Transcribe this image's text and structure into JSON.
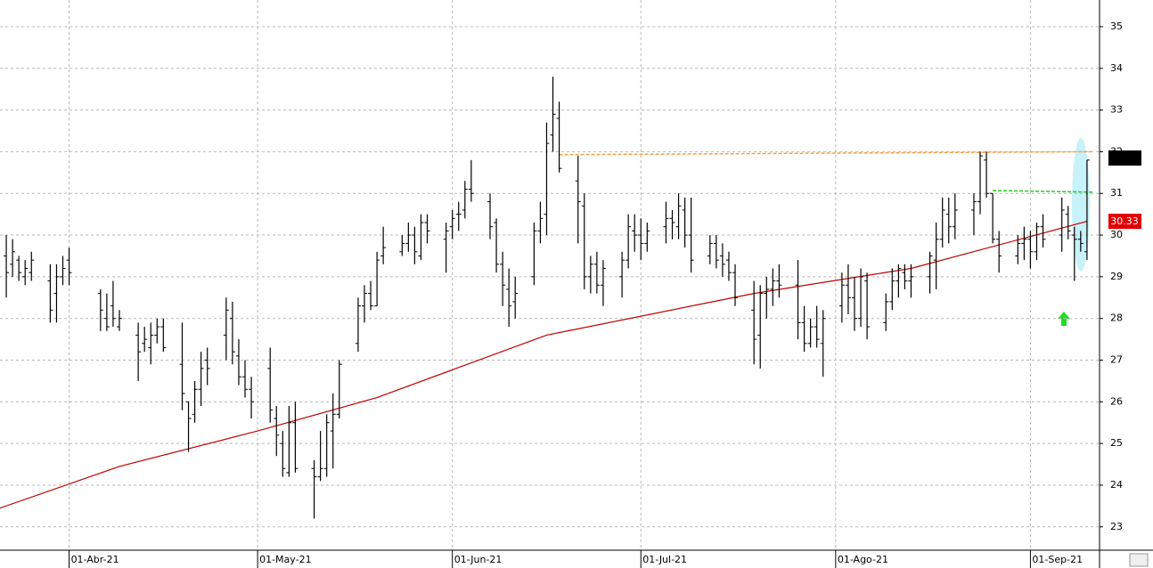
{
  "chart_data": {
    "type": "ohlc",
    "color": "#000000",
    "xlim": [
      "2021-03-21",
      "2021-09-12"
    ],
    "xticks": [
      {
        "value": "2021-04-01",
        "label": "01-Abr-21"
      },
      {
        "value": "2021-05-01",
        "label": "01-May-21"
      },
      {
        "value": "2021-06-01",
        "label": "01-Jun-21"
      },
      {
        "value": "2021-07-01",
        "label": "01-Jul-21"
      },
      {
        "value": "2021-08-01",
        "label": "01-Ago-21"
      },
      {
        "value": "2021-09-01",
        "label": "01-Sep-21"
      }
    ],
    "ylim": [
      22.44,
      35.64
    ],
    "yticks": [
      23,
      24,
      25,
      26,
      27,
      28,
      29,
      30,
      31,
      32,
      33,
      34,
      35
    ],
    "grid": true,
    "x": [
      "2021-03-22",
      "2021-03-23",
      "2021-03-24",
      "2021-03-25",
      "2021-03-26",
      "2021-03-29",
      "2021-03-30",
      "2021-03-31",
      "2021-04-01",
      "2021-04-06",
      "2021-04-07",
      "2021-04-08",
      "2021-04-09",
      "2021-04-12",
      "2021-04-13",
      "2021-04-14",
      "2021-04-15",
      "2021-04-16",
      "2021-04-19",
      "2021-04-20",
      "2021-04-21",
      "2021-04-22",
      "2021-04-23",
      "2021-04-26",
      "2021-04-27",
      "2021-04-28",
      "2021-04-29",
      "2021-04-30",
      "2021-05-03",
      "2021-05-04",
      "2021-05-05",
      "2021-05-06",
      "2021-05-07",
      "2021-05-10",
      "2021-05-11",
      "2021-05-12",
      "2021-05-13",
      "2021-05-14",
      "2021-05-17",
      "2021-05-18",
      "2021-05-19",
      "2021-05-20",
      "2021-05-21",
      "2021-05-24",
      "2021-05-25",
      "2021-05-26",
      "2021-05-27",
      "2021-05-28",
      "2021-05-31",
      "2021-06-01",
      "2021-06-02",
      "2021-06-03",
      "2021-06-04",
      "2021-06-07",
      "2021-06-08",
      "2021-06-09",
      "2021-06-10",
      "2021-06-11",
      "2021-06-14",
      "2021-06-15",
      "2021-06-16",
      "2021-06-17",
      "2021-06-18",
      "2021-06-21",
      "2021-06-22",
      "2021-06-23",
      "2021-06-24",
      "2021-06-25",
      "2021-06-28",
      "2021-06-29",
      "2021-06-30",
      "2021-07-01",
      "2021-07-02",
      "2021-07-05",
      "2021-07-06",
      "2021-07-07",
      "2021-07-08",
      "2021-07-09",
      "2021-07-12",
      "2021-07-13",
      "2021-07-14",
      "2021-07-15",
      "2021-07-16",
      "2021-07-19",
      "2021-07-20",
      "2021-07-21",
      "2021-07-22",
      "2021-07-23",
      "2021-07-26",
      "2021-07-27",
      "2021-07-28",
      "2021-07-29",
      "2021-07-30",
      "2021-08-02",
      "2021-08-03",
      "2021-08-04",
      "2021-08-05",
      "2021-08-06",
      "2021-08-09",
      "2021-08-10",
      "2021-08-11",
      "2021-08-12",
      "2021-08-13",
      "2021-08-16",
      "2021-08-17",
      "2021-08-18",
      "2021-08-19",
      "2021-08-20",
      "2021-08-23",
      "2021-08-24",
      "2021-08-25",
      "2021-08-26",
      "2021-08-27",
      "2021-08-30",
      "2021-08-31",
      "2021-09-01",
      "2021-09-02",
      "2021-09-03",
      "2021-09-06",
      "2021-09-07",
      "2021-09-08",
      "2021-09-09",
      "2021-09-10"
    ],
    "open": [
      29.5,
      29.3,
      29.4,
      29.0,
      29.1,
      28.9,
      28.6,
      29.0,
      29.4,
      28.6,
      28.0,
      28.3,
      27.8,
      27.6,
      27.4,
      27.3,
      27.6,
      27.8,
      26.9,
      26.0,
      25.7,
      26.3,
      27.0,
      27.6,
      28.0,
      27.1,
      26.6,
      26.3,
      26.8,
      25.6,
      25.0,
      24.3,
      25.5,
      24.4,
      24.2,
      24.4,
      25.3,
      25.7,
      27.4,
      28.3,
      28.6,
      28.3,
      29.5,
      29.6,
      29.8,
      30.0,
      29.5,
      30.3,
      29.9,
      30.2,
      30.5,
      30.6,
      31.1,
      30.8,
      30.3,
      29.3,
      28.7,
      28.4,
      29.0,
      30.1,
      30.5,
      32.4,
      32.8,
      31.3,
      30.7,
      29.0,
      29.3,
      28.8,
      29.0,
      29.4,
      30.1,
      30.0,
      29.8,
      30.2,
      30.4,
      30.2,
      30.6,
      30.0,
      29.5,
      29.8,
      29.5,
      29.4,
      29.1,
      28.2,
      27.6,
      28.6,
      28.7,
      28.9,
      28.8,
      27.9,
      27.4,
      27.8,
      27.4,
      28.3,
      28.8,
      28.5,
      28.0,
      28.9,
      27.9,
      28.4,
      28.9,
      29.1,
      28.9,
      29.0,
      29.4,
      29.9,
      30.5,
      30.2,
      30.6,
      30.8,
      31.8,
      31.0,
      29.9,
      29.5,
      29.8,
      29.9,
      29.6,
      30.2,
      30.0,
      30.5,
      30.0,
      29.9,
      29.6
    ],
    "high": [
      30.0,
      29.9,
      29.5,
      29.4,
      29.6,
      29.3,
      29.3,
      29.5,
      29.7,
      28.7,
      28.6,
      28.9,
      28.2,
      27.9,
      27.8,
      27.9,
      28.0,
      28.0,
      27.9,
      26.0,
      26.5,
      27.2,
      27.3,
      28.5,
      28.4,
      27.5,
      27.0,
      26.6,
      27.3,
      25.9,
      25.3,
      25.9,
      26.0,
      24.6,
      25.3,
      25.7,
      26.2,
      27.0,
      28.5,
      28.8,
      28.9,
      29.6,
      30.2,
      30.0,
      30.3,
      30.2,
      30.5,
      30.5,
      30.3,
      30.6,
      30.8,
      31.3,
      31.8,
      31.0,
      30.4,
      29.6,
      29.2,
      29.0,
      30.3,
      30.8,
      32.7,
      33.8,
      33.2,
      31.9,
      31.0,
      29.5,
      29.6,
      29.4,
      29.6,
      30.5,
      30.5,
      30.4,
      30.3,
      30.8,
      30.6,
      31.0,
      30.9,
      30.9,
      30.0,
      30.0,
      29.8,
      29.6,
      29.3,
      28.9,
      28.8,
      29.0,
      29.2,
      29.3,
      29.4,
      28.3,
      28.0,
      28.3,
      28.2,
      29.1,
      29.3,
      29.0,
      29.2,
      29.1,
      28.6,
      29.2,
      29.3,
      29.3,
      29.3,
      29.6,
      30.3,
      30.9,
      30.9,
      31.0,
      31.0,
      32.0,
      32.0,
      31.0,
      30.1,
      30.0,
      30.2,
      30.1,
      30.3,
      30.5,
      30.9,
      30.7,
      30.2,
      30.1,
      31.8
    ],
    "low": [
      28.5,
      29.0,
      28.9,
      28.8,
      28.9,
      27.9,
      27.9,
      28.8,
      28.8,
      27.7,
      27.7,
      27.8,
      27.7,
      26.5,
      27.2,
      26.9,
      27.4,
      27.2,
      25.8,
      24.8,
      25.5,
      25.9,
      26.4,
      27.0,
      26.9,
      26.4,
      26.1,
      25.6,
      25.5,
      24.7,
      24.2,
      24.2,
      24.3,
      23.2,
      24.1,
      24.2,
      24.4,
      25.6,
      27.2,
      27.9,
      28.2,
      28.3,
      29.3,
      29.5,
      29.6,
      29.3,
      29.4,
      29.8,
      29.1,
      29.9,
      30.1,
      30.4,
      30.8,
      29.9,
      29.1,
      28.3,
      27.8,
      28.0,
      28.8,
      29.8,
      30.0,
      32.0,
      31.5,
      29.8,
      28.7,
      28.6,
      28.6,
      28.3,
      28.5,
      29.2,
      29.6,
      29.4,
      29.6,
      29.8,
      29.9,
      29.9,
      29.7,
      29.1,
      29.3,
      29.2,
      29.0,
      28.9,
      28.3,
      26.9,
      26.8,
      28.0,
      28.3,
      28.5,
      27.5,
      27.2,
      27.3,
      27.3,
      26.6,
      27.9,
      28.1,
      27.7,
      27.8,
      27.5,
      27.7,
      28.2,
      28.5,
      28.7,
      28.5,
      28.6,
      28.7,
      29.7,
      29.8,
      29.9,
      30.0,
      30.5,
      30.9,
      29.8,
      29.1,
      29.3,
      29.4,
      29.2,
      29.4,
      29.7,
      29.6,
      29.9,
      28.9,
      29.6,
      29.4
    ],
    "close": [
      29.1,
      29.6,
      29.1,
      29.2,
      29.4,
      28.2,
      29.0,
      29.2,
      29.1,
      28.2,
      27.8,
      28.0,
      28.0,
      27.2,
      27.5,
      27.6,
      27.8,
      27.3,
      26.2,
      25.6,
      26.3,
      26.8,
      26.8,
      28.2,
      27.2,
      26.6,
      26.3,
      26.0,
      25.8,
      25.2,
      24.4,
      25.5,
      24.4,
      24.2,
      24.4,
      25.5,
      25.7,
      26.9,
      28.3,
      28.6,
      28.3,
      29.4,
      29.7,
      29.8,
      30.0,
      29.6,
      30.3,
      30.1,
      30.1,
      30.4,
      30.5,
      31.1,
      31.0,
      30.2,
      29.3,
      28.8,
      28.3,
      28.6,
      30.1,
      30.4,
      32.2,
      32.9,
      31.6,
      30.8,
      29.0,
      29.3,
      28.8,
      29.2,
      29.4,
      30.2,
      30.0,
      29.8,
      30.1,
      30.4,
      30.3,
      30.7,
      30.0,
      29.4,
      29.8,
      29.4,
      29.3,
      29.1,
      28.5,
      27.5,
      28.6,
      28.7,
      28.9,
      28.8,
      27.9,
      27.4,
      27.8,
      27.5,
      28.0,
      28.8,
      28.5,
      28.0,
      29.0,
      27.8,
      28.4,
      28.9,
      29.2,
      28.9,
      29.0,
      29.5,
      29.9,
      30.6,
      30.2,
      30.6,
      30.8,
      31.9,
      31.0,
      29.9,
      29.5,
      29.8,
      29.9,
      29.6,
      30.2,
      29.9,
      30.6,
      30.1,
      29.9,
      29.8,
      31.8
    ],
    "lines": [
      {
        "color": "#c00000",
        "dash": false,
        "x": [
          "2021-03-21",
          "2021-04-09",
          "2021-05-01",
          "2021-05-20",
          "2021-06-16",
          "2021-07-19",
          "2021-08-13",
          "2021-09-10"
        ],
        "values": [
          23.45,
          24.45,
          25.3,
          26.1,
          27.6,
          28.6,
          29.2,
          30.33
        ]
      },
      {
        "color": "#f4a040",
        "dash": true,
        "x": [
          "2021-06-18",
          "2021-09-11"
        ],
        "values": [
          31.93,
          32.0
        ]
      },
      {
        "color": "#22cc22",
        "dash": true,
        "x": [
          "2021-08-26",
          "2021-09-11"
        ],
        "values": [
          31.07,
          31.03
        ]
      }
    ],
    "price_label": {
      "value": 30.33,
      "color": "#e00000"
    }
  }
}
